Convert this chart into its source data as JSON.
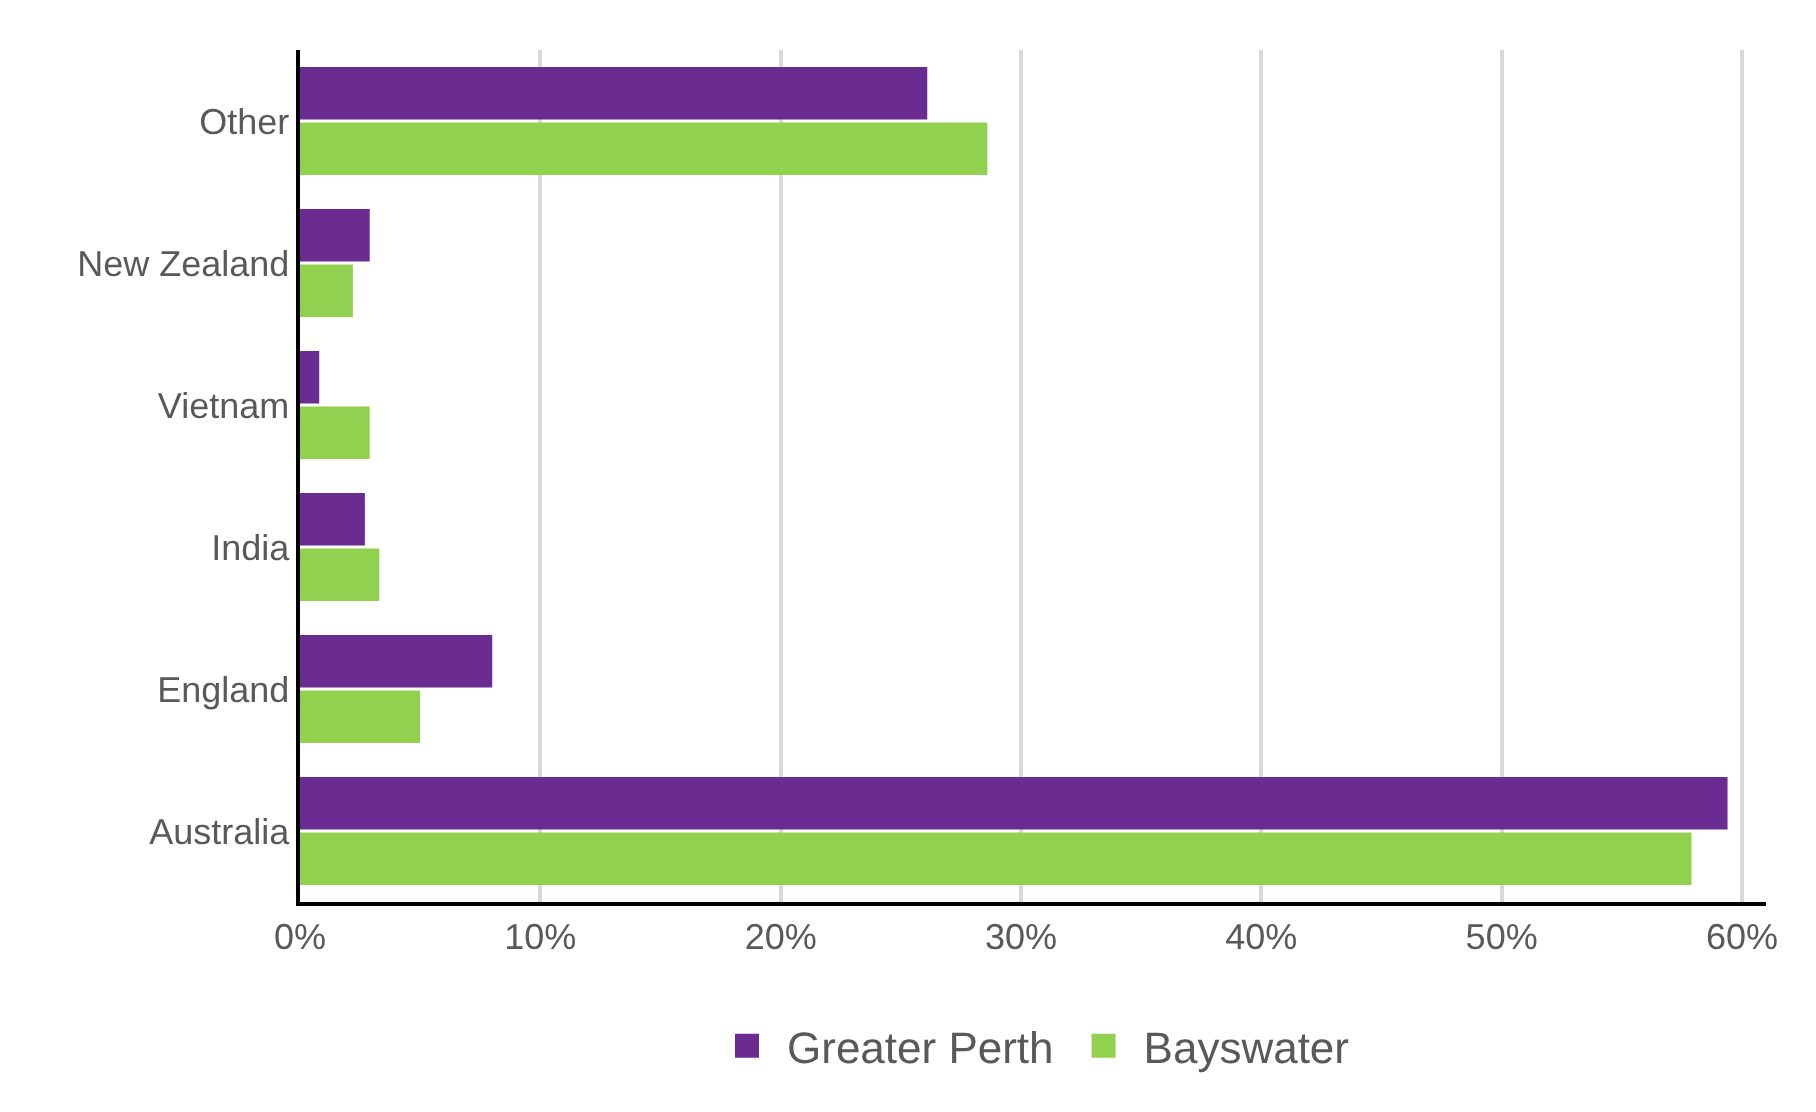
{
  "chart_data": {
    "type": "bar",
    "orientation": "horizontal",
    "categories": [
      "Other",
      "New Zealand",
      "Vietnam",
      "India",
      "England",
      "Australia"
    ],
    "series": [
      {
        "name": "Greater Perth",
        "color": "#6a2c91",
        "values": [
          26.1,
          2.9,
          0.8,
          2.7,
          8.0,
          59.4
        ]
      },
      {
        "name": "Bayswater",
        "color": "#92d050",
        "values": [
          28.6,
          2.2,
          2.9,
          3.3,
          5.0,
          57.9
        ]
      }
    ],
    "xlim": [
      0,
      61
    ],
    "xticks": [
      {
        "value": 0,
        "label": "0%"
      },
      {
        "value": 10,
        "label": "10%"
      },
      {
        "value": 20,
        "label": "20%"
      },
      {
        "value": 30,
        "label": "30%"
      },
      {
        "value": 40,
        "label": "40%"
      },
      {
        "value": 50,
        "label": "50%"
      },
      {
        "value": 60,
        "label": "60%"
      }
    ],
    "grid": "x",
    "legend": "bottom"
  }
}
